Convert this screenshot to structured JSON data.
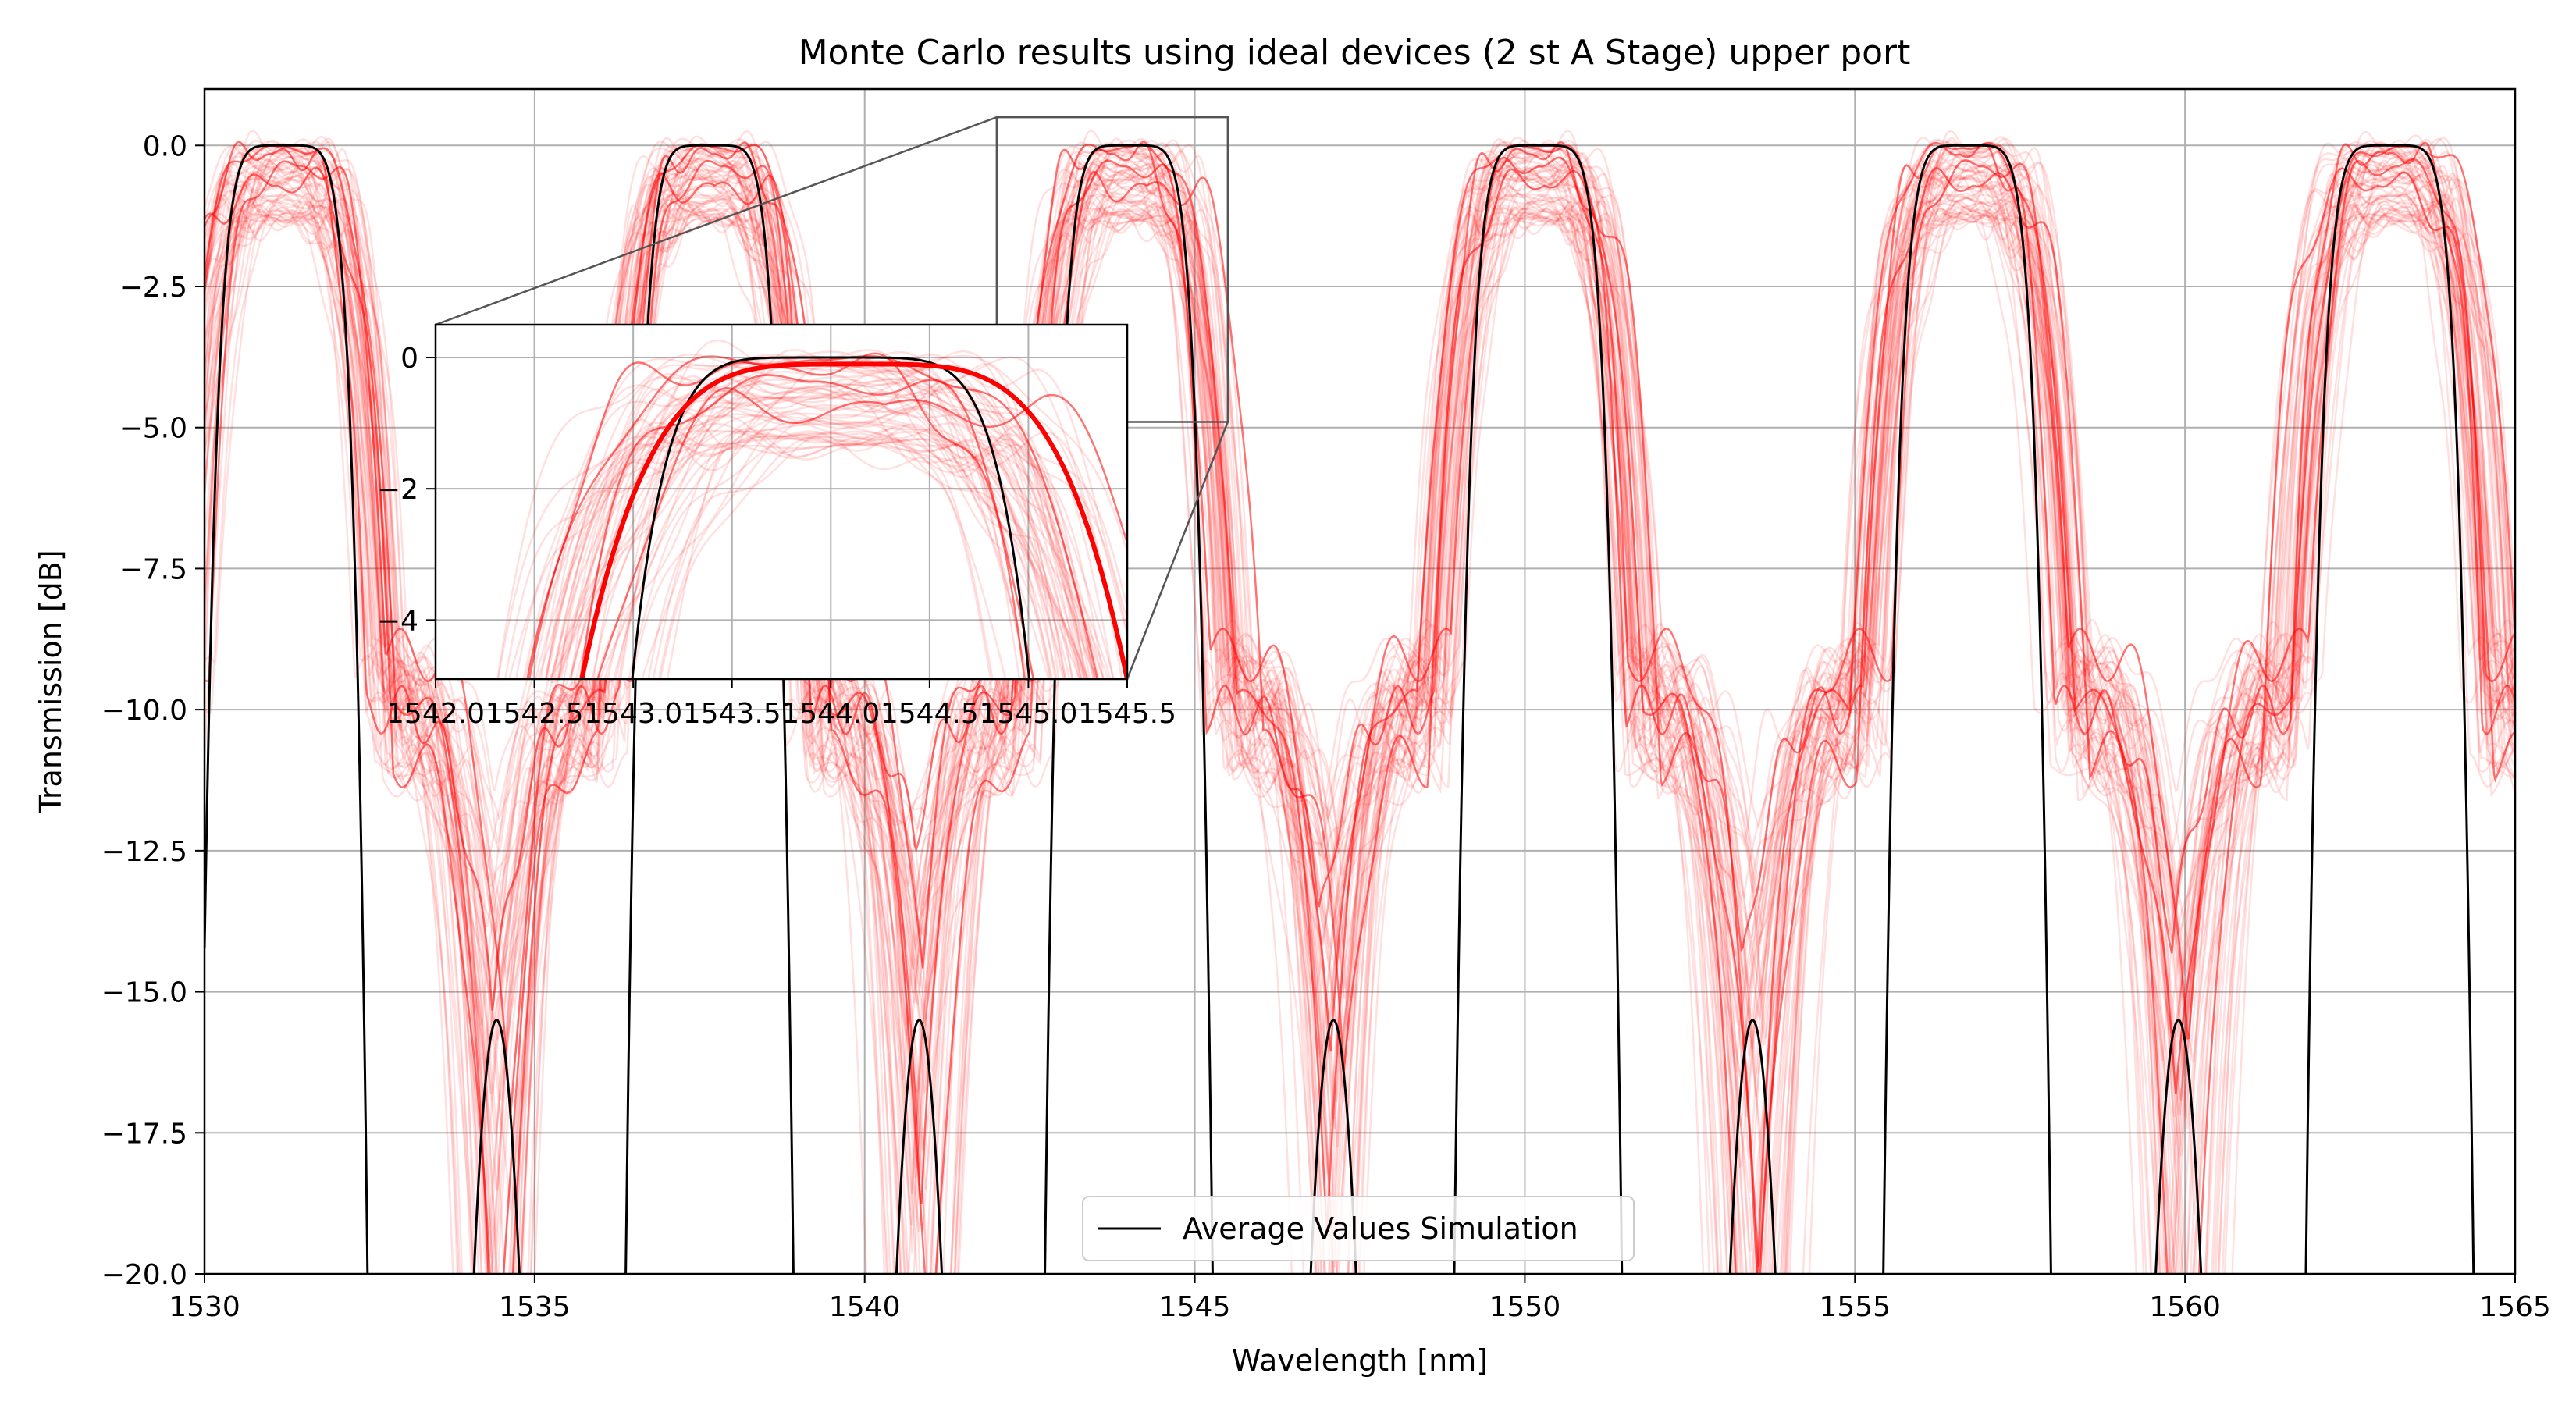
{
  "colors": {
    "mc_curve": "#ff0000",
    "mean_curve": "#000000",
    "grid": "#b0b0b0",
    "zoom_connector": "#555555",
    "background": "#ffffff"
  },
  "chart_data": [
    {
      "id": "main",
      "type": "line",
      "title": "Monte Carlo results using ideal devices (2 st A Stage) upper port",
      "xlabel": "Wavelength [nm]",
      "ylabel": "Transmission [dB]",
      "xlim": [
        1530,
        1565
      ],
      "ylim": [
        -20,
        1
      ],
      "xticks": [
        1530,
        1535,
        1540,
        1545,
        1550,
        1555,
        1560,
        1565
      ],
      "xtick_labels": [
        "1530",
        "1535",
        "1540",
        "1545",
        "1550",
        "1555",
        "1560",
        "1565"
      ],
      "yticks": [
        0,
        -2.5,
        -5,
        -7.5,
        -10,
        -12.5,
        -15,
        -17.5,
        -20
      ],
      "ytick_labels": [
        "0.0",
        "−2.5",
        "−5.0",
        "−7.5",
        "−10.0",
        "−12.5",
        "−15.0",
        "−17.5",
        "−20.0"
      ],
      "grid": true,
      "legend": {
        "position": "bottom-center",
        "entries": [
          "Average Values Simulation"
        ]
      },
      "passband_centers_nm": [
        1531.2,
        1537.65,
        1544.0,
        1550.2,
        1556.7,
        1563.1
      ],
      "series": [
        {
          "name": "Average Values Simulation",
          "color": "#000000",
          "style": "main lobes peak at 0 dB with flat top (~0.6 nm), cross -20 dB about 1.25 nm from center; side lobes peak at -15.5 dB midway between channels",
          "points": [
            [
              1530.0,
              -12.8
            ],
            [
              1530.2,
              -7.0
            ],
            [
              1530.5,
              -2.2
            ],
            [
              1530.8,
              -0.3
            ],
            [
              1531.2,
              0.0
            ],
            [
              1531.5,
              -0.2
            ],
            [
              1531.8,
              -2.0
            ],
            [
              1532.1,
              -7.0
            ],
            [
              1532.45,
              -20.0
            ],
            [
              1533.1,
              -20.0
            ],
            [
              1533.45,
              -15.5
            ],
            [
              1533.8,
              -20.0
            ]
          ]
        },
        {
          "name": "Monte Carlo runs",
          "color": "#ff0000",
          "style": "about 60 translucent red traces around each passband, peak between -1.4 dB and 0 dB, wider skirts with shoulder near -9 to -10 dB, passband center jitter about ±0.3 nm",
          "points": [
            [
              1530.0,
              -4.5
            ],
            [
              1530.5,
              -1.6
            ],
            [
              1531.0,
              -0.1
            ],
            [
              1531.4,
              -0.1
            ],
            [
              1532.0,
              -1.8
            ],
            [
              1532.7,
              -8.9
            ],
            [
              1533.2,
              -10.0
            ],
            [
              1533.6,
              -20.0
            ]
          ]
        }
      ]
    },
    {
      "id": "inset",
      "type": "line",
      "title": "",
      "xlabel": "",
      "ylabel": "",
      "xlim": [
        1542.0,
        1545.5
      ],
      "ylim": [
        -4.9,
        0.5
      ],
      "xticks": [
        1542.0,
        1542.5,
        1543.0,
        1543.5,
        1544.0,
        1544.5,
        1545.0,
        1545.5
      ],
      "xtick_labels": [
        "1542.0",
        "1542.5",
        "1543.0",
        "1543.5",
        "1544.0",
        "1544.5",
        "1545.0",
        "1545.5"
      ],
      "yticks": [
        0,
        -2,
        -4
      ],
      "ytick_labels": [
        "0",
        "−2",
        "−4"
      ],
      "grid": true,
      "highlighted_run": {
        "color": "#ff0000",
        "peak_dB": -0.1,
        "points": [
          [
            1543.2,
            -4.9
          ],
          [
            1543.5,
            -1.6
          ],
          [
            1543.8,
            -0.2
          ],
          [
            1544.2,
            -0.1
          ],
          [
            1544.5,
            -0.7
          ],
          [
            1544.8,
            -2.6
          ],
          [
            1544.98,
            -4.9
          ]
        ]
      },
      "mean_points": [
        [
          1542.9,
          -4.9
        ],
        [
          1543.3,
          -1.2
        ],
        [
          1543.6,
          -0.2
        ],
        [
          1543.9,
          0.0
        ],
        [
          1544.2,
          -0.2
        ],
        [
          1544.5,
          -1.2
        ],
        [
          1544.75,
          -4.9
        ]
      ]
    }
  ]
}
